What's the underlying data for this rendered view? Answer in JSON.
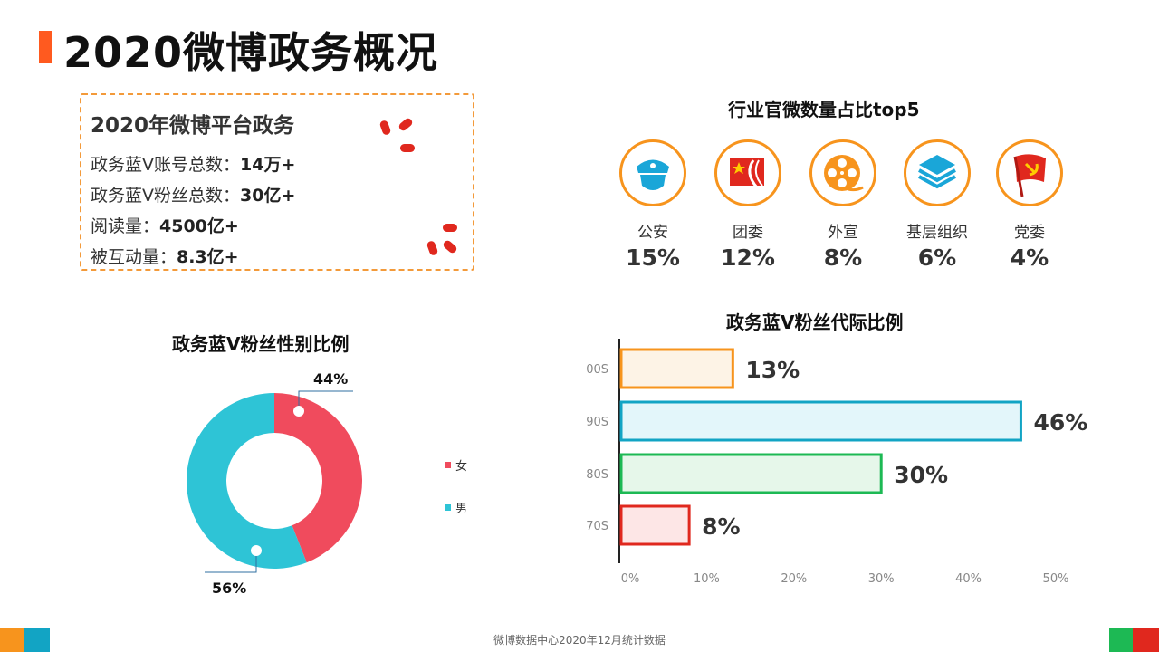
{
  "page": {
    "title": "2020微博政务概况",
    "footer": "微博数据中心2020年12月统计数据"
  },
  "summary": {
    "title": "2020年微博平台政务",
    "rows": [
      {
        "label": "政务蓝V账号总数：",
        "value": "14万+"
      },
      {
        "label": "政务蓝V粉丝总数：",
        "value": "30亿+"
      },
      {
        "label": "阅读量：",
        "value": "4500亿+"
      },
      {
        "label": "被互动量：",
        "value": "8.3亿+"
      }
    ]
  },
  "industry": {
    "title": "行业官微数量占比top5",
    "items": [
      {
        "label": "公安",
        "value": "15%",
        "icon": "police-cap-icon"
      },
      {
        "label": "团委",
        "value": "12%",
        "icon": "youth-league-flag-icon"
      },
      {
        "label": "外宣",
        "value": "8%",
        "icon": "film-reel-icon"
      },
      {
        "label": "基层组织",
        "value": "6%",
        "icon": "layers-icon"
      },
      {
        "label": "党委",
        "value": "4%",
        "icon": "party-flag-icon"
      }
    ]
  },
  "chart_data": [
    {
      "type": "pie",
      "title": "政务蓝V粉丝性别比例",
      "categories": [
        "女",
        "男"
      ],
      "values": [
        44,
        56
      ],
      "labels": [
        "44%",
        "56%"
      ],
      "colors": [
        "#f04b5d",
        "#2ec4d6"
      ],
      "legend": "right"
    },
    {
      "type": "bar",
      "orientation": "horizontal",
      "title": "政务蓝V粉丝代际比例",
      "categories": [
        "00S",
        "90S",
        "80S",
        "70S"
      ],
      "values": [
        13,
        46,
        30,
        8
      ],
      "labels": [
        "13%",
        "46%",
        "30%",
        "8%"
      ],
      "xlim": [
        0,
        50
      ],
      "x_ticks": [
        "0%",
        "10%",
        "20%",
        "30%",
        "40%",
        "50%"
      ],
      "bar_stroke": [
        "#f7941d",
        "#12a4c4",
        "#1db954",
        "#e0281e"
      ],
      "bar_fill": [
        "#fdf3e6",
        "#e3f6fa",
        "#e6f7ea",
        "#fde6e6"
      ]
    }
  ]
}
